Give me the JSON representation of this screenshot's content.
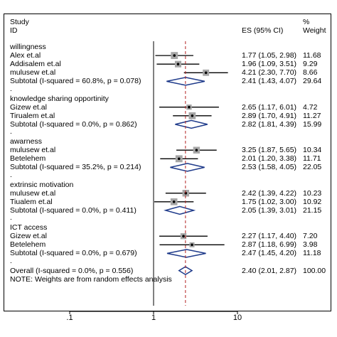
{
  "chart_data": {
    "type": "forest",
    "title": "",
    "header": {
      "study": "Study",
      "id": "ID",
      "es": "ES (95% CI)",
      "pct": "%",
      "weight": "Weight"
    },
    "xscale": "log",
    "xlim": [
      0.1,
      10
    ],
    "xticks": [
      {
        "value": 0.1,
        "label": ".1"
      },
      {
        "value": 1,
        "label": "1"
      },
      {
        "value": 10,
        "label": "10"
      }
    ],
    "null_line": 1,
    "overall_line": 2.4,
    "groups": [
      {
        "name": "willingness",
        "studies": [
          {
            "label": "Alex et.al",
            "es": 1.77,
            "lo": 1.05,
            "hi": 2.98,
            "ci_text": "1.77 (1.05, 2.98)",
            "weight": "11.68"
          },
          {
            "label": "Addisalem et.al",
            "es": 1.96,
            "lo": 1.09,
            "hi": 3.51,
            "ci_text": "1.96 (1.09, 3.51)",
            "weight": "9.29"
          },
          {
            "label": "mulusew et.al",
            "es": 4.21,
            "lo": 2.3,
            "hi": 7.7,
            "ci_text": "4.21 (2.30, 7.70)",
            "weight": "8.66"
          }
        ],
        "subtotal": {
          "label": "Subtotal  (I-squared = 60.8%, p = 0.078)",
          "es": 2.41,
          "lo": 1.43,
          "hi": 4.07,
          "ci_text": "2.41 (1.43, 4.07)",
          "weight": "29.64"
        }
      },
      {
        "name": "knowledge sharing opportinity",
        "studies": [
          {
            "label": "Gizew et.al",
            "es": 2.65,
            "lo": 1.17,
            "hi": 6.01,
            "ci_text": "2.65 (1.17, 6.01)",
            "weight": "4.72"
          },
          {
            "label": "Tirualem et.al",
            "es": 2.89,
            "lo": 1.7,
            "hi": 4.91,
            "ci_text": "2.89 (1.70, 4.91)",
            "weight": "11.27"
          }
        ],
        "subtotal": {
          "label": "Subtotal  (I-squared = 0.0%, p = 0.862)",
          "es": 2.82,
          "lo": 1.81,
          "hi": 4.39,
          "ci_text": "2.82 (1.81, 4.39)",
          "weight": "15.99"
        }
      },
      {
        "name": "awarness",
        "studies": [
          {
            "label": "mulusew et.al",
            "es": 3.25,
            "lo": 1.87,
            "hi": 5.65,
            "ci_text": "3.25 (1.87, 5.65)",
            "weight": "10.34"
          },
          {
            "label": "Betelehem",
            "es": 2.01,
            "lo": 1.2,
            "hi": 3.38,
            "ci_text": "2.01 (1.20, 3.38)",
            "weight": "11.71"
          }
        ],
        "subtotal": {
          "label": "Subtotal  (I-squared = 35.2%, p = 0.214)",
          "es": 2.53,
          "lo": 1.58,
          "hi": 4.05,
          "ci_text": "2.53 (1.58, 4.05)",
          "weight": "22.05"
        }
      },
      {
        "name": "extrinsic motivation",
        "studies": [
          {
            "label": "mulusew et.al",
            "es": 2.42,
            "lo": 1.39,
            "hi": 4.22,
            "ci_text": "2.42 (1.39, 4.22)",
            "weight": "10.23"
          },
          {
            "label": "Tiualem et.al",
            "es": 1.75,
            "lo": 1.02,
            "hi": 3.0,
            "ci_text": "1.75 (1.02, 3.00)",
            "weight": "10.92"
          }
        ],
        "subtotal": {
          "label": "Subtotal  (I-squared = 0.0%, p = 0.411)",
          "es": 2.05,
          "lo": 1.39,
          "hi": 3.01,
          "ci_text": "2.05 (1.39, 3.01)",
          "weight": "21.15"
        }
      },
      {
        "name": "ICT access",
        "studies": [
          {
            "label": "Gizew et.al",
            "es": 2.27,
            "lo": 1.17,
            "hi": 4.4,
            "ci_text": "2.27 (1.17, 4.40)",
            "weight": "7.20"
          },
          {
            "label": "Betelehem",
            "es": 2.87,
            "lo": 1.18,
            "hi": 6.99,
            "ci_text": "2.87 (1.18, 6.99)",
            "weight": "3.98"
          }
        ],
        "subtotal": {
          "label": "Subtotal  (I-squared = 0.0%, p = 0.679)",
          "es": 2.47,
          "lo": 1.45,
          "hi": 4.2,
          "ci_text": "2.47 (1.45, 4.20)",
          "weight": "11.18"
        }
      }
    ],
    "overall": {
      "label": "Overall  (I-squared = 0.0%, p = 0.556)",
      "es": 2.4,
      "lo": 2.01,
      "hi": 2.87,
      "ci_text": "2.40 (2.01, 2.87)",
      "weight": "100.00"
    },
    "note": "NOTE: Weights are from random effects analysis",
    "separator": ".",
    "colors": {
      "box": "#a6a6a6",
      "diamond": "#1e3a8a",
      "refline": "#b22222",
      "line": "#000000"
    }
  }
}
